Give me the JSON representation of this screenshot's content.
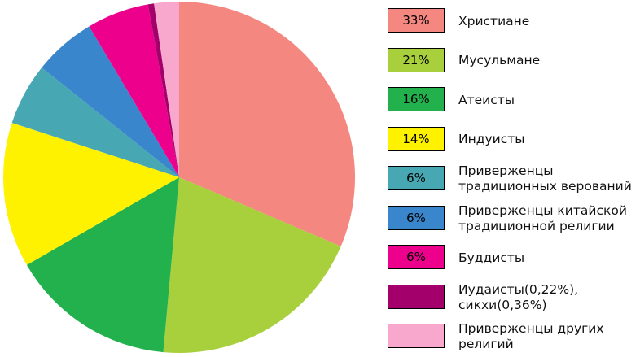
{
  "chart_data": {
    "type": "pie",
    "categories": [
      "Христиане",
      "Мусульмане",
      "Атеисты",
      "Индуисты",
      "Приверженцы традиционных верований",
      "Приверженцы китайской традиционной религии",
      "Буддисты",
      "Иудаисты(0,22%), сикхи(0,36%)",
      "Приверженцы других религий"
    ],
    "values": [
      33,
      21,
      16,
      14,
      6,
      6,
      6,
      0.58,
      2.4
    ],
    "value_labels": [
      "33%",
      "21%",
      "16%",
      "14%",
      "6%",
      "6%",
      "6%",
      null,
      null
    ],
    "colors": [
      "#f4877f",
      "#a8cf3c",
      "#22b14c",
      "#fff200",
      "#47a8b3",
      "#3a86cc",
      "#ec008c",
      "#a3006b",
      "#f7a8cc"
    ]
  }
}
